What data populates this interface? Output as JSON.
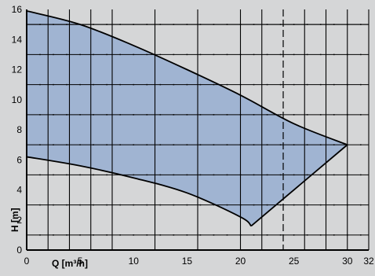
{
  "chart_data": {
    "type": "area",
    "title": "",
    "xlabel": "Q [m³/h]",
    "ylabel": "H [m]",
    "xlim": [
      0,
      32
    ],
    "ylim": [
      0,
      16
    ],
    "x_ticks": [
      0,
      5,
      10,
      15,
      20,
      25,
      30,
      32
    ],
    "y_ticks": [
      0,
      2,
      4,
      6,
      8,
      10,
      12,
      14,
      16
    ],
    "grid": true,
    "dotted_grid": true,
    "dashed_reference_x": 24,
    "colors": {
      "background": "#d5d6d7",
      "area_fill": "#a0b4d2",
      "outline": "#000000"
    },
    "series": [
      {
        "role": "max-curve",
        "points": [
          [
            0,
            15.9
          ],
          [
            5,
            15.0
          ],
          [
            10,
            13.6
          ],
          [
            15,
            12.0
          ],
          [
            20,
            10.3
          ],
          [
            25,
            8.4
          ],
          [
            30,
            7.0
          ]
        ]
      },
      {
        "role": "min-curve",
        "points": [
          [
            0,
            6.2
          ],
          [
            5,
            5.6
          ],
          [
            10,
            4.8
          ],
          [
            15,
            3.8
          ],
          [
            20,
            2.2
          ],
          [
            21,
            1.6
          ]
        ]
      },
      {
        "role": "right-edge",
        "points": [
          [
            21,
            1.6
          ],
          [
            30,
            7.0
          ]
        ]
      }
    ]
  }
}
